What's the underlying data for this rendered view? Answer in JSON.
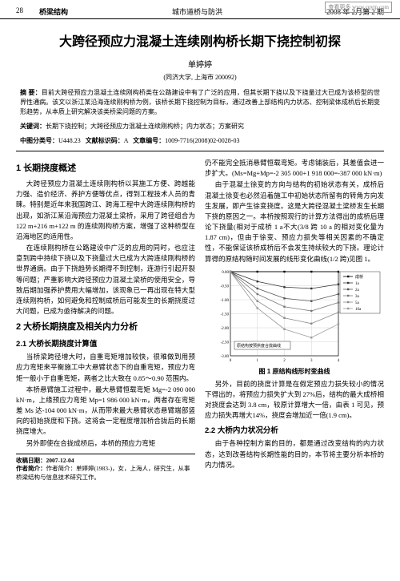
{
  "watermark": "查看更多 www.cqvip.com",
  "header": {
    "page_num": "28",
    "section": "桥梁结构",
    "journal": "城市道桥与防洪",
    "issue": "2008 年 2月第 2 期"
  },
  "title": "大跨径预应力混凝土连续刚构桥长期下挠控制初探",
  "author": "单婷婷",
  "affiliation": "(同济大学, 上海市 200092)",
  "abstract": {
    "label": "摘 要：",
    "text": "目前大跨径预应力混凝土连续刚构桥类在公路建设中有了广泛的应用，但其长期下挠以及下挠量过大已成为该桥型的世界性通病。该文以浙江某沿海连续刚构桥为例，该桥长期下挠控制为目标，通过改善上部结构内力状态、控制梁体成桥后长期变形趋势，从本质上研究解决该类桥梁问题的方案。"
  },
  "keywords": {
    "label": "关键词：",
    "text": "长期下挠控制；大跨径预应力混凝土连续刚构桥；内力状态；方案研究"
  },
  "classification": {
    "label_cn": "中图分类号：",
    "value_cn": "U448.23",
    "label_doc": "文献标识码：",
    "value_doc": "A",
    "label_article": "文章编号：",
    "value_article": "1009-7716(2008)02-0028-03"
  },
  "left_col": {
    "s1_title": "1 长期挠度概述",
    "s1_p1": "大跨径预应力混凝土连续刚构桥以其施工方便、跨越能力强、造价经济、养护方便等优点，得到工程技术人员的青睐。特别是近年来我国跨江、跨海工程中大跨连续刚构桥的出现，如浙江某沿海预应力混凝土梁桥，采用了跨径组合为 122 m+216 m+122 m 的连续刚构桥方案，增强了这种桥型在沿海地区的适用性。",
    "s1_p2": "在连续刚构桥在公路建设中广泛的应用的同时，也应注意到跨中持续下挠以及下挠量过大已成为大跨连续刚构桥的世界通病。由于下挠趋势长期得不到控制，连游行引起开裂等问题；严重影响大跨径预应力混凝土梁桥的使用安全，导致后期加强养护费用大幅增加，该现象已一再出现在特大型连续刚构桥，如何避免和控制成桥后可能发生的长期挠度过大问题，已成为亟待解决的问题。",
    "s2_title": "2 大桥长期挠度及相关内力分析",
    "s21_title": "2.1 大桥长期挠度计算值",
    "s21_p1": "当桥梁跨径增大时，自重弯矩增加较快，很难做到用预应力弯矩来平衡施工中大悬臂状态下的自重弯矩，预应力弯矩一般小于自重弯矩，两者之比大致在 0.85～0.90 范围内。",
    "s21_p2": "本桥悬臂施工过程中，最大悬臂恒载弯矩 Mg=-2 090 000 kN·m，上缘预应力弯矩 Mp=1 986 000 kN·m，两者存在弯矩差 Ms 达-104 000 kN·m，从而带来最大悬臂状态悬臂端部竖向的初始挠度和下挠。这将会一定程度增加桥合拢后的长期挠度增大。",
    "s21_p3": "另外即使在合拢成桥后，本桥的预应力弯矩",
    "footer": {
      "recv": "收稿日期：2007-12-04",
      "bio": "作者简介：单婷婷(1983-)，女，上海人，研究生，从事桥梁结构与信息技术研究工作。"
    }
  },
  "right_col": {
    "p1": "仍不能完全抵消悬臂恒载弯矩。考虑铺装后，其差值会进一步扩大。(Ms=Mg+Mp=-2 305 000+1 918 000=-387 000 kN·m)",
    "p2": "由于混凝土徐变的方向与结构的初始状态有关，成桥后混凝土徐变也必然沿着施工中初始状态所留有的转角方向发生发展，即产生徐变挠度。这是大跨径混凝土梁桥发生长期下挠的原因之一。本桥按照现行的计算方法得出的成桥后理论下挠量(相对于成桥 1 a不大(3/8 跨 10 a 的相对变化量为 1.87 cm)，但由于徐变、预应力损失等相关因素的不确定性，不能保证该桥成桥后不会发生持续较大的下挠。理论计算得的原结构随时间发展的线形变化曲线(1/2 跨)见图 1。",
    "chart": {
      "type": "line",
      "title": "图 1 原结构线形时变曲线",
      "x_values": [
        0,
        1,
        2,
        3,
        4
      ],
      "y_min": -3.0,
      "y_max": 0.0,
      "y_ticks": [
        0.0,
        -0.5,
        -1.0,
        -1.5,
        -2.0,
        -2.5,
        -3.0
      ],
      "series": [
        {
          "name": "成桥",
          "data": [
            0,
            0,
            0,
            0,
            0
          ],
          "color": "#000000",
          "marker": "diamond"
        },
        {
          "name": "1a",
          "data": [
            0,
            -0.35,
            -0.55,
            -0.6,
            -0.45
          ],
          "color": "#333333",
          "marker": "square"
        },
        {
          "name": "2a",
          "data": [
            0,
            -0.6,
            -0.95,
            -1.05,
            -0.8
          ],
          "color": "#555555",
          "marker": "triangle"
        },
        {
          "name": "3a",
          "data": [
            0,
            -0.8,
            -1.25,
            -1.4,
            -1.1
          ],
          "color": "#777777",
          "marker": "x"
        },
        {
          "name": "5a",
          "data": [
            0,
            -1.05,
            -1.65,
            -1.85,
            -1.45
          ],
          "color": "#888888",
          "marker": "star"
        },
        {
          "name": "10a",
          "data": [
            0,
            -1.3,
            -2.05,
            -2.35,
            -1.87
          ],
          "color": "#999999",
          "marker": "circle"
        }
      ],
      "legend_box_label": "原结构按预拱度合拢曲线",
      "background_color": "#ffffff",
      "grid_color": "#cccccc",
      "axis_color": "#000000"
    },
    "p3": "另外，目前的挠度计算是在假定预应力损失较小的情况下得出的，将预应力损失扩大到 27%后，结构的最大成桥相对挠度会达到 3.8 cm，较原计算增大一倍，由表 1 可见，预应力损失再增大14%，挠度会增加近一倍(1.9 cm)。",
    "s22_title": "2.2 大桥内力状况分析",
    "s22_p1": "由于各种控制方案的目的，都是通过改变结构的内力状态，达到改善结构长期性能的目的，本节将主要分析本桥的内力情况。"
  }
}
